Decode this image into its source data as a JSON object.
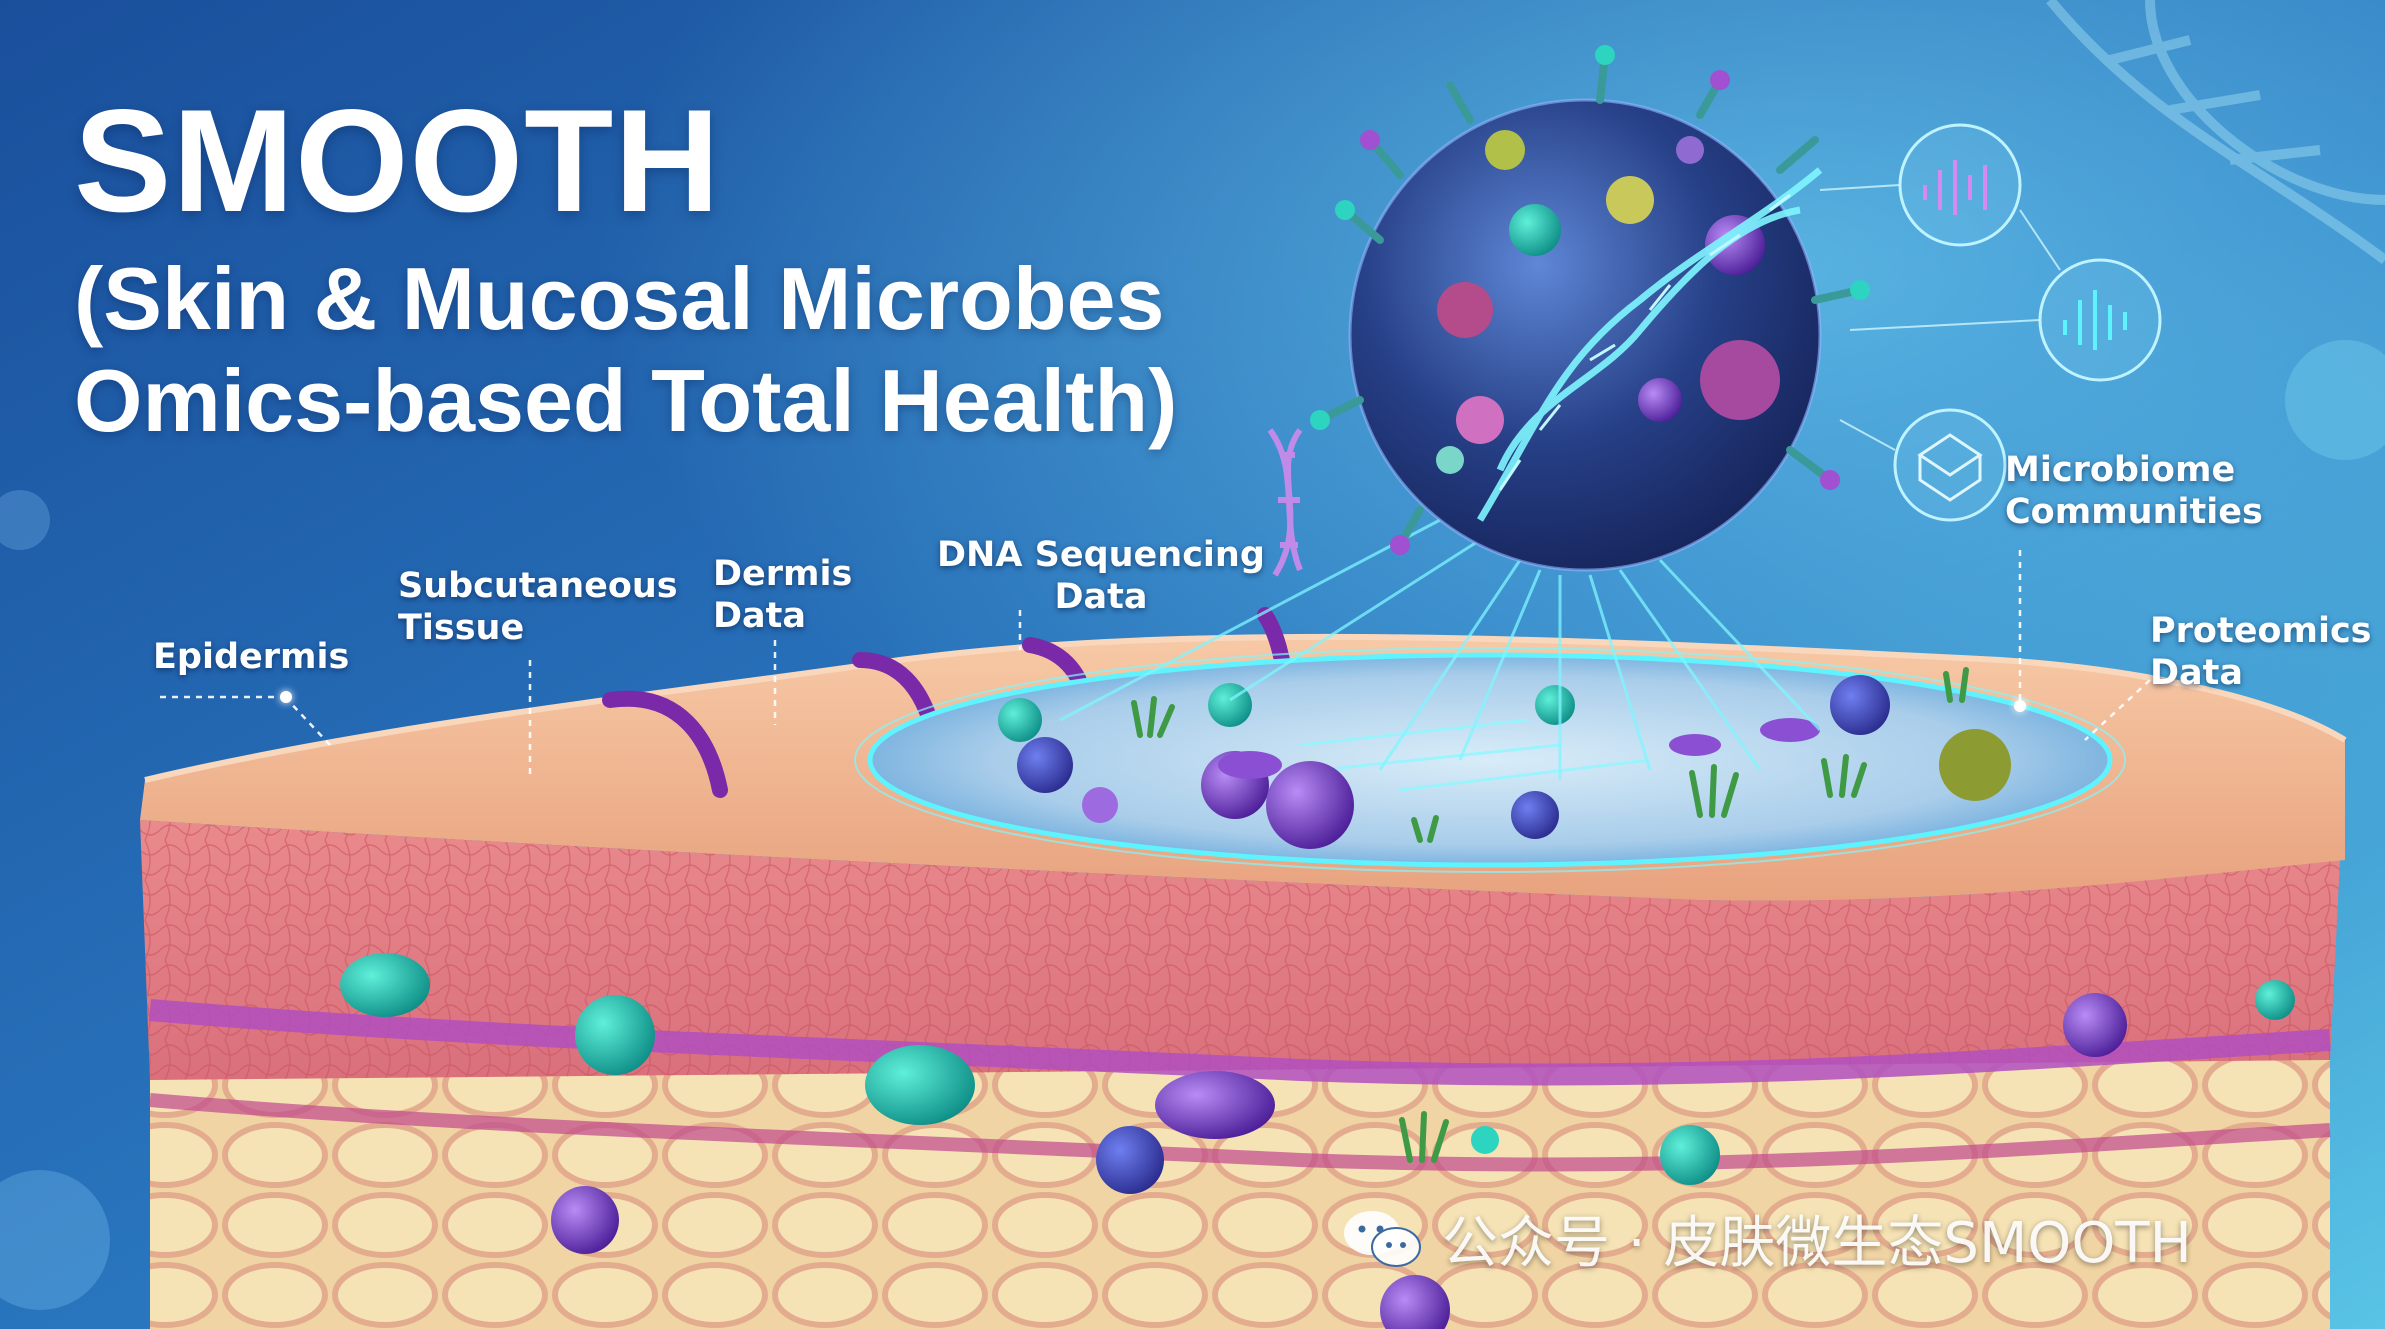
{
  "title": {
    "main": "SMOOTH",
    "line1": "(Skin & Mucosal Microbes",
    "line2": "Omics-based Total Health)"
  },
  "labels": {
    "epidermis": "Epidermis",
    "subcutaneous_1": "Subcutaneous",
    "subcutaneous_2": "Tissue",
    "dermis_1": "Dermis",
    "dermis_2": "Data",
    "dna_1": "DNA Sequencing",
    "dna_2": "Data",
    "microbiome_1": "Microbiome",
    "microbiome_2": "Communities",
    "proteomics_1": "Proteomics",
    "proteomics_2": "Data"
  },
  "watermark": {
    "text": "公众号 · 皮肤微生态SMOOTH",
    "icon": "wechat-icon"
  },
  "colors": {
    "background": "#1e5fa8",
    "skin_top": "#f2b48f",
    "dermis": "#e97f86",
    "fat": "#f3dfb0",
    "hologram": "#5ff3ff",
    "microbe_teal": "#1fb3a6",
    "microbe_purple": "#7b3fc4"
  }
}
